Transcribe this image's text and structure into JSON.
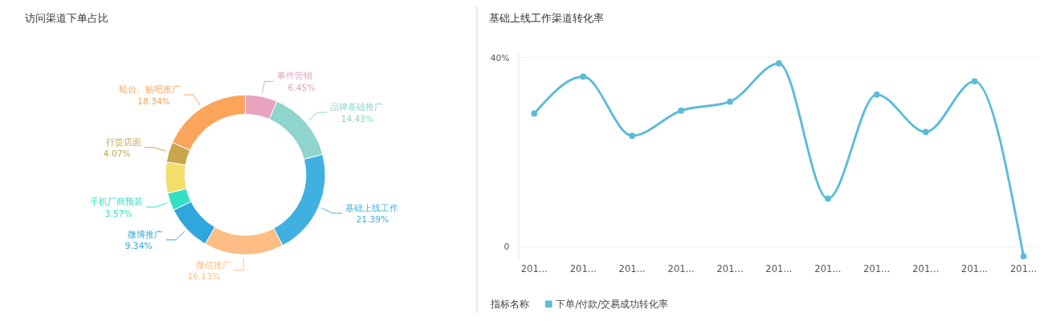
{
  "chart_data": [
    {
      "type": "donut",
      "title": "访问渠道下单占比",
      "categories": [
        "事件营销",
        "品牌基础推广",
        "基础上线工作",
        "微信推广",
        "微博推广",
        "手机厂商预装",
        null,
        "行货店面",
        "轮台、贴吧推广"
      ],
      "values": [
        6.45,
        14.43,
        21.39,
        16.13,
        9.34,
        3.57,
        6.28,
        4.07,
        18.34
      ],
      "value_labels": [
        "6.45%",
        "14.43%",
        "21.39%",
        "16.13%",
        "9.34%",
        "3.57%",
        null,
        "4.07%",
        "18.34%"
      ],
      "colors": [
        "#e8a3bf",
        "#8fd4cd",
        "#3fb0e0",
        "#fdbd84",
        "#2fa6dc",
        "#33e0c3",
        "#f3de6a",
        "#c8a64e",
        "#fba45c"
      ]
    },
    {
      "type": "line",
      "title": "基础上线工作渠道转化率",
      "categories": [
        "201...",
        "201...",
        "201...",
        "201...",
        "201...",
        "201...",
        "201...",
        "201...",
        "201...",
        "201...",
        "201..."
      ],
      "ylim": [
        -2.5,
        41
      ],
      "yticks": [
        {
          "value": 0,
          "label": "0"
        },
        {
          "value": 40,
          "label": "40%"
        }
      ],
      "grid": "y",
      "legend": "bottom left",
      "legend_title": "指标名称",
      "marker": "circle",
      "series": [
        {
          "name": "下单/付款/交易成功转化率",
          "color": "#5bbcd8",
          "values": [
            28.2,
            36,
            23.5,
            28.8,
            30.7,
            38.8,
            10.2,
            32.2,
            24.3,
            35,
            -2
          ]
        }
      ]
    }
  ]
}
